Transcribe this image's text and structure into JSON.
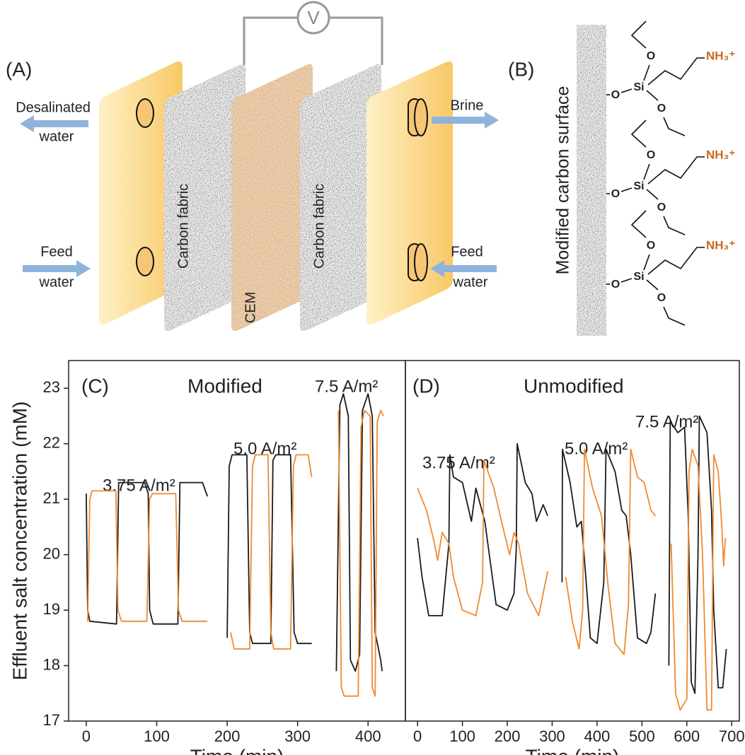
{
  "panel_a": {
    "label": "(A)",
    "voltmeter": "V",
    "outlet_left": [
      "Desalinated",
      "water"
    ],
    "outlet_right": "Brine",
    "inlet_left": [
      "Feed",
      "water"
    ],
    "inlet_right": [
      "Feed",
      "water"
    ],
    "layers": [
      "Carbon fabric",
      "CEM",
      "Carbon fabric"
    ]
  },
  "panel_b": {
    "label": "(B)",
    "surface": "Modified carbon surface",
    "molecules": [
      {
        "atoms": [
          "O",
          "Si",
          "O",
          "O"
        ],
        "amine": "NH₃⁺"
      },
      {
        "atoms": [
          "O",
          "Si",
          "O",
          "O"
        ],
        "amine": "NH₃⁺"
      },
      {
        "atoms": [
          "O",
          "Si",
          "O",
          "O"
        ],
        "amine": "NH₃⁺"
      }
    ]
  },
  "chart_data": [
    {
      "type": "line",
      "panel_label": "(C)",
      "title": "Modified",
      "annotations": [
        "3.75 A/m²",
        "5.0 A/m²",
        "7.5 A/m²"
      ],
      "xlabel": "Time (min)",
      "ylabel": "Effluent salt concentration (mM)",
      "xlim": [
        -25,
        453
      ],
      "ylim": [
        17,
        23.5
      ],
      "xticks": [
        0,
        100,
        200,
        300,
        400
      ],
      "yticks": [
        17,
        18,
        19,
        20,
        21,
        22,
        23
      ],
      "series": [
        {
          "color": "#1a1a1a",
          "x": [
            0,
            2,
            5,
            43,
            46,
            83,
            88,
            90,
            95,
            130,
            133,
            165,
            172,
            null,
            200,
            203,
            207,
            228,
            232,
            236,
            262,
            265,
            269,
            290,
            295,
            300,
            320,
            null,
            355,
            360,
            365,
            372,
            375,
            382,
            388,
            392,
            400,
            406,
            410,
            418,
            420
          ],
          "values": [
            21.1,
            19.0,
            18.8,
            18.75,
            21.3,
            21.3,
            21.1,
            19.0,
            18.75,
            18.75,
            21.3,
            21.3,
            21.05,
            null,
            18.5,
            21.6,
            21.8,
            21.8,
            18.6,
            18.4,
            18.4,
            21.7,
            21.8,
            21.8,
            18.6,
            18.4,
            18.4,
            null,
            17.9,
            22.7,
            22.9,
            22.5,
            18.1,
            17.9,
            18.2,
            22.6,
            22.9,
            22.5,
            18.6,
            18.1,
            17.9
          ]
        },
        {
          "color": "#f08a30",
          "x": [
            2,
            5,
            8,
            42,
            45,
            50,
            86,
            90,
            94,
            127,
            131,
            136,
            172,
            null,
            205,
            210,
            232,
            236,
            240,
            258,
            262,
            266,
            290,
            294,
            298,
            315,
            320,
            null,
            358,
            362,
            366,
            386,
            390,
            395,
            403,
            406,
            410,
            413,
            418,
            422
          ],
          "values": [
            18.8,
            21.0,
            21.15,
            21.15,
            19.0,
            18.8,
            18.8,
            21.0,
            21.1,
            21.1,
            19.0,
            18.8,
            18.8,
            null,
            18.6,
            18.3,
            18.3,
            21.6,
            21.8,
            21.8,
            18.6,
            18.3,
            18.3,
            21.6,
            21.8,
            21.8,
            21.4,
            null,
            22.6,
            17.6,
            17.45,
            17.45,
            22.3,
            22.6,
            22.5,
            17.6,
            17.45,
            22.4,
            22.6,
            22.5
          ]
        }
      ]
    },
    {
      "type": "line",
      "panel_label": "(D)",
      "title": "Unmodified",
      "annotations": [
        "3.75 A/m²",
        "5.0 A/m²",
        "7.5 A/m²"
      ],
      "xlabel": "Time (min)",
      "xlim": [
        -27,
        717
      ],
      "ylim": [
        17,
        23.5
      ],
      "xticks": [
        0,
        100,
        200,
        300,
        400,
        500,
        600,
        700
      ],
      "series": [
        {
          "color": "#1a1a1a",
          "x": [
            0,
            10,
            25,
            55,
            70,
            72,
            80,
            100,
            120,
            130,
            150,
            160,
            175,
            200,
            215,
            220,
            222,
            240,
            255,
            265,
            280,
            290,
            null,
            322,
            323,
            340,
            355,
            365,
            375,
            385,
            400,
            415,
            420,
            440,
            455,
            465,
            475,
            490,
            510,
            520,
            530,
            null,
            560,
            563,
            580,
            595,
            603,
            610,
            618,
            625,
            628,
            645,
            655,
            660,
            670,
            680,
            688
          ],
          "values": [
            20.3,
            19.6,
            18.9,
            18.9,
            20.2,
            21.8,
            21.4,
            21.3,
            20.6,
            21.2,
            20.6,
            20.0,
            19.1,
            19.0,
            19.3,
            20.1,
            22.0,
            21.3,
            21.1,
            20.6,
            20.9,
            20.7,
            null,
            19.5,
            21.9,
            21.3,
            20.5,
            20.6,
            19.6,
            18.5,
            18.4,
            19.5,
            21.9,
            21.5,
            20.8,
            20.7,
            20.0,
            18.5,
            18.4,
            18.6,
            19.3,
            null,
            18.0,
            22.4,
            22.2,
            22.3,
            20.7,
            17.7,
            17.5,
            20.0,
            22.5,
            22.2,
            20.8,
            19.0,
            17.6,
            17.6,
            18.3
          ]
        },
        {
          "color": "#f08a30",
          "x": [
            0,
            20,
            35,
            45,
            55,
            70,
            80,
            100,
            130,
            145,
            148,
            170,
            190,
            205,
            215,
            225,
            245,
            270,
            290,
            null,
            330,
            345,
            360,
            368,
            372,
            390,
            410,
            425,
            440,
            460,
            470,
            475,
            490,
            505,
            520,
            530,
            null,
            565,
            575,
            585,
            600,
            605,
            612,
            625,
            635,
            645,
            655,
            660,
            670,
            678,
            682,
            686
          ],
          "values": [
            21.2,
            20.8,
            20.3,
            19.9,
            20.4,
            20.2,
            19.6,
            19.0,
            18.9,
            19.5,
            21.7,
            21.2,
            20.5,
            20.0,
            20.4,
            20.2,
            19.3,
            18.9,
            19.7,
            null,
            19.6,
            18.8,
            18.3,
            19.0,
            21.9,
            21.2,
            20.7,
            19.4,
            18.4,
            18.2,
            19.1,
            21.9,
            21.4,
            21.3,
            20.8,
            20.7,
            null,
            20.2,
            17.5,
            17.2,
            17.4,
            21.5,
            21.9,
            21.6,
            20.0,
            17.2,
            17.2,
            21.8,
            21.5,
            20.5,
            19.8,
            20.3
          ]
        }
      ]
    }
  ]
}
